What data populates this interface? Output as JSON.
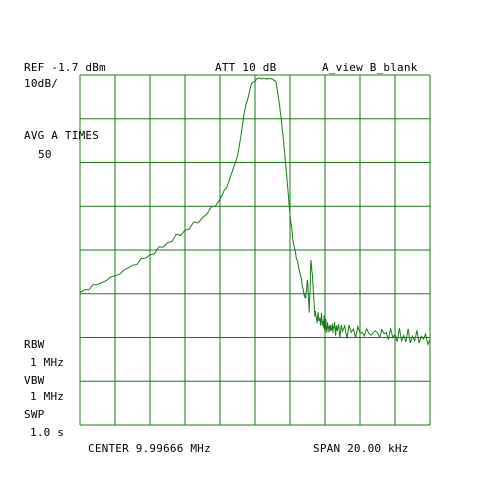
{
  "header": {
    "ref": "REF -1.7 dBm",
    "att": "ATT 10 dB",
    "trace_mode": "A_view B_blank",
    "scale": "10dB/"
  },
  "side": {
    "avg_label": "AVG A TIMES",
    "avg_value": "50",
    "rbw_label": "RBW",
    "rbw_value": "1 MHz",
    "vbw_label": "VBW",
    "vbw_value": "1 MHz",
    "swp_label": "SWP",
    "swp_value": "1.0 s"
  },
  "footer": {
    "center": "CENTER 9.99666 MHz",
    "span": "SPAN 20.00 kHz"
  },
  "chart_data": {
    "type": "line",
    "trace_color": "#1a7a1a",
    "grid_color": "#1a7a1a",
    "grid": true,
    "x_divisions": 10,
    "y_divisions": 8,
    "xlim": [
      9.98666,
      10.00666
    ],
    "ylim": [
      -81.7,
      -1.7
    ],
    "series": [
      {
        "x": [
          9.98666,
          9.98766,
          9.98866,
          9.98966,
          9.99066,
          9.99166,
          9.99266,
          9.99366,
          9.99466,
          9.99516,
          9.99566,
          9.99586,
          9.99606,
          9.99646,
          9.99686,
          9.99726,
          9.99746,
          9.99766,
          9.99786,
          9.99806,
          9.99826,
          9.99846,
          9.99866,
          9.99886,
          9.99906,
          9.99926,
          9.99946,
          9.99956,
          9.99966,
          9.99976,
          9.99986,
          9.99996,
          10.00006,
          10.00016,
          10.00036,
          10.00056,
          10.00066,
          10.00076,
          10.00086,
          10.00096,
          10.00106,
          10.00116,
          10.00136,
          10.00166,
          10.00216,
          10.00266,
          10.00316,
          10.00366,
          10.00416,
          10.00466,
          10.00516,
          10.00566,
          10.00616,
          10.00666
        ],
        "values": [
          -51.4,
          -49.6,
          -47.6,
          -45.2,
          -42.8,
          -40.0,
          -37.2,
          -34.3,
          -30.1,
          -26.2,
          -20.2,
          -15.6,
          -10.0,
          -3.7,
          -2.4,
          -2.6,
          -2.5,
          -2.6,
          -3.2,
          -8.4,
          -15.5,
          -24.1,
          -33.6,
          -40.2,
          -44.0,
          -47.5,
          -51.8,
          -52.7,
          -48.5,
          -56.0,
          -44.0,
          -48.6,
          -55.6,
          -56.9,
          -57.2,
          -57.9,
          -58.6,
          -59.1,
          -59.3,
          -59.6,
          -59.8,
          -59.6,
          -60.2,
          -60.3,
          -60.5,
          -60.7,
          -60.7,
          -60.6,
          -60.6,
          -61.0,
          -61.2,
          -61.4,
          -61.4,
          -62.2
        ]
      }
    ]
  }
}
